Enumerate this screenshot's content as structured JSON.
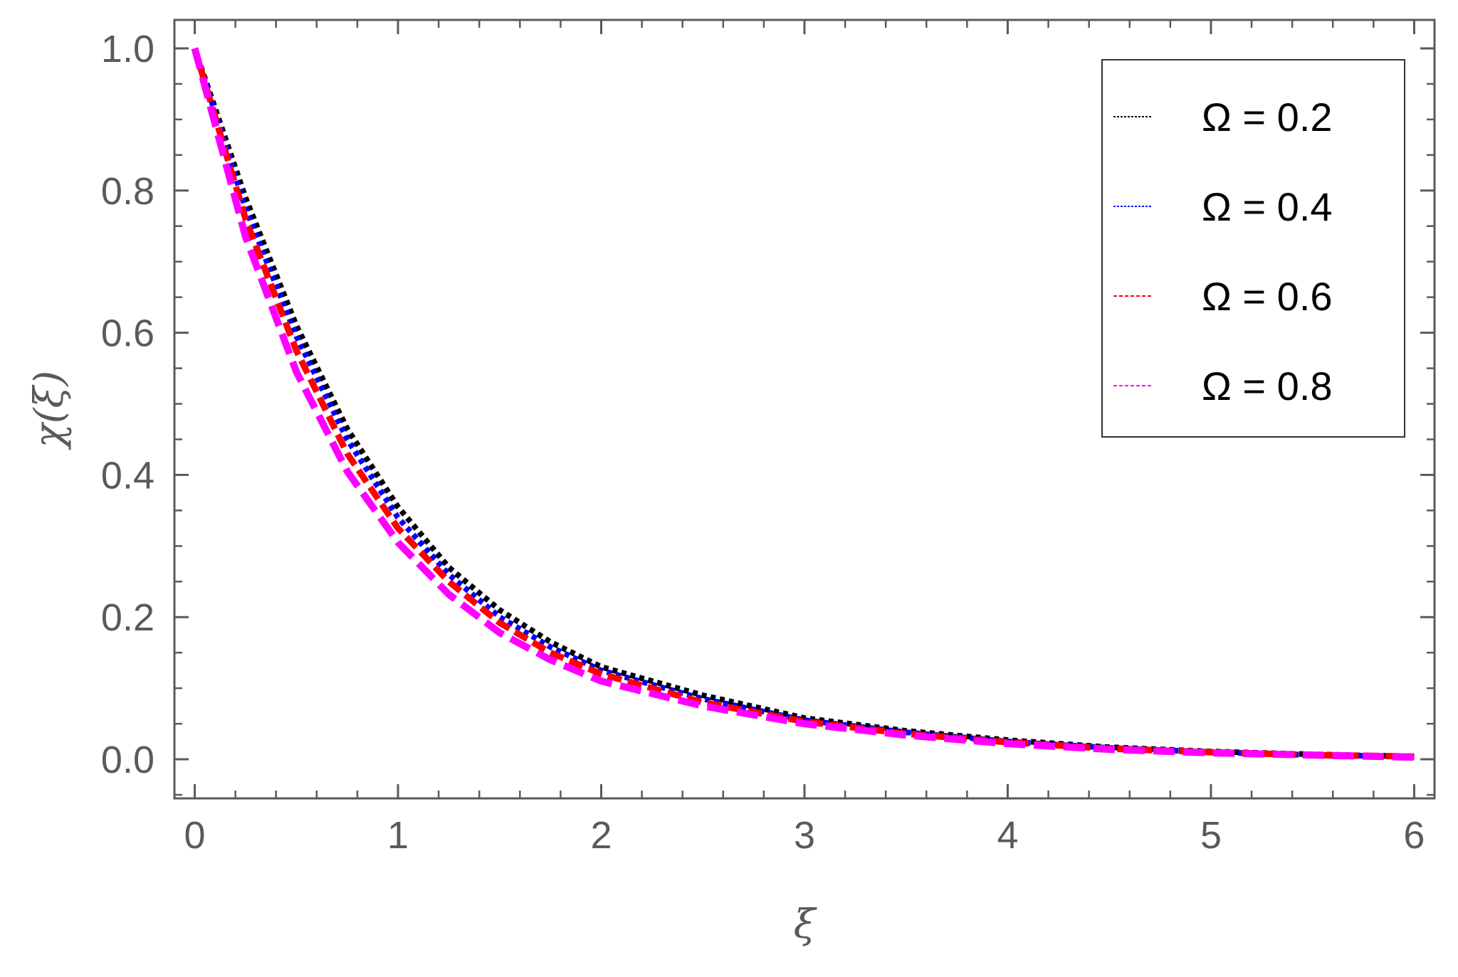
{
  "chart_data": {
    "type": "line",
    "xlabel": "ξ",
    "ylabel": "χ(ξ)",
    "xlim": [
      -0.1,
      6.1
    ],
    "ylim": [
      -0.055,
      1.04
    ],
    "x_ticks": [
      0,
      1,
      2,
      3,
      4,
      5,
      6
    ],
    "x_tick_labels": [
      "0",
      "1",
      "2",
      "3",
      "4",
      "5",
      "6"
    ],
    "y_ticks": [
      0.0,
      0.2,
      0.4,
      0.6,
      0.8,
      1.0
    ],
    "y_tick_labels": [
      "0.0",
      "0.2",
      "0.4",
      "0.6",
      "0.8",
      "1.0"
    ],
    "grid": false,
    "frame": "box-with-minor-ticks",
    "legend_position": "top-right",
    "x": [
      0,
      0.25,
      0.5,
      0.75,
      1,
      1.25,
      1.5,
      1.75,
      2,
      2.5,
      3,
      3.5,
      4,
      4.5,
      5,
      5.5,
      6
    ],
    "series": [
      {
        "name": "Ω = 0.2",
        "color": "#000000",
        "style": "dotted",
        "values": [
          1.0,
          0.79,
          0.61,
          0.465,
          0.355,
          0.27,
          0.21,
          0.165,
          0.13,
          0.09,
          0.058,
          0.04,
          0.027,
          0.017,
          0.011,
          0.007,
          0.004
        ]
      },
      {
        "name": "Ω = 0.4",
        "color": "#0000ff",
        "style": "dotted",
        "values": [
          1.0,
          0.775,
          0.595,
          0.45,
          0.34,
          0.26,
          0.2,
          0.158,
          0.125,
          0.085,
          0.055,
          0.038,
          0.025,
          0.016,
          0.01,
          0.006,
          0.004
        ]
      },
      {
        "name": "Ω = 0.6",
        "color": "#ff0000",
        "style": "dashed",
        "values": [
          1.0,
          0.76,
          0.575,
          0.43,
          0.325,
          0.25,
          0.192,
          0.15,
          0.12,
          0.08,
          0.053,
          0.036,
          0.024,
          0.015,
          0.01,
          0.006,
          0.004
        ]
      },
      {
        "name": "Ω = 0.8",
        "color": "#ff00ff",
        "style": "long-dashed",
        "values": [
          1.0,
          0.735,
          0.545,
          0.405,
          0.305,
          0.232,
          0.178,
          0.14,
          0.11,
          0.075,
          0.05,
          0.034,
          0.022,
          0.014,
          0.009,
          0.006,
          0.003
        ]
      }
    ]
  }
}
